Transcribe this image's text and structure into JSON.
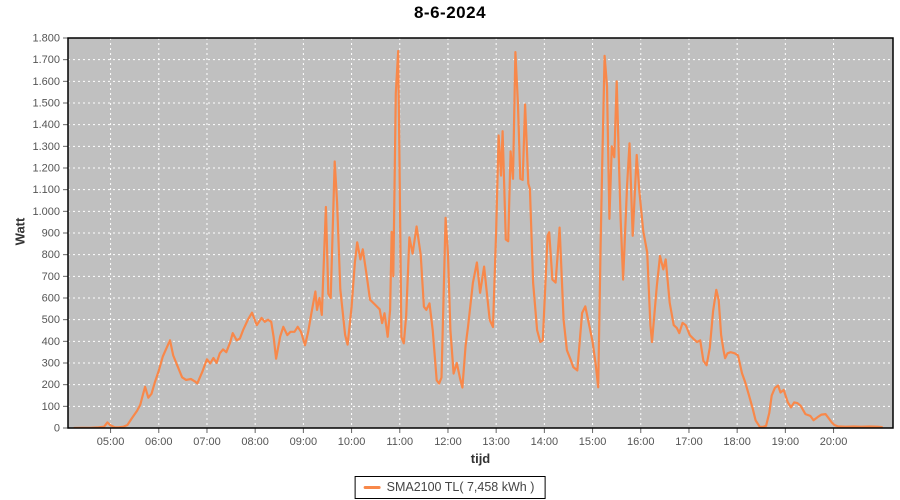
{
  "chart": {
    "plot_bg": "#c0c0c0",
    "grid_color": "#ffffff",
    "border_color": "#000000",
    "tick_color": "#666666",
    "tick_label_color": "#555555",
    "series_color": "#f8884a"
  },
  "legend": {
    "label": "SMA2100 TL( 7,458 kWh )",
    "swatch_color": "#f8884a"
  },
  "chart_data": {
    "type": "line",
    "title": "8-6-2024",
    "xlabel": "tijd",
    "ylabel": "Watt",
    "legend_position": "bottom-center",
    "grid": "dashed-white",
    "ylim": [
      0,
      1800
    ],
    "y_tick_step": 100,
    "y_tick_labels": [
      "0",
      "100",
      "200",
      "300",
      "400",
      "500",
      "600",
      "700",
      "800",
      "900",
      "1.000",
      "1.100",
      "1.200",
      "1.300",
      "1.400",
      "1.500",
      "1.600",
      "1.700",
      "1.800"
    ],
    "x_ticks": [
      "05:00",
      "06:00",
      "07:00",
      "08:00",
      "09:00",
      "10:00",
      "11:00",
      "12:00",
      "13:00",
      "14:00",
      "15:00",
      "16:00",
      "17:00",
      "18:00",
      "19:00",
      "20:00"
    ],
    "x_range_minutes": [
      247,
      1274
    ],
    "series": [
      {
        "name": "SMA2100 TL( 7,458 kWh )",
        "color": "#f8884a",
        "points": [
          [
            "04:15",
            0
          ],
          [
            "04:25",
            1
          ],
          [
            "04:35",
            1
          ],
          [
            "04:45",
            3
          ],
          [
            "04:52",
            6
          ],
          [
            "04:56",
            26
          ],
          [
            "05:00",
            12
          ],
          [
            "05:05",
            3
          ],
          [
            "05:10",
            3
          ],
          [
            "05:16",
            6
          ],
          [
            "05:21",
            14
          ],
          [
            "05:27",
            48
          ],
          [
            "05:33",
            80
          ],
          [
            "05:37",
            108
          ],
          [
            "05:40",
            150
          ],
          [
            "05:43",
            190
          ],
          [
            "05:47",
            140
          ],
          [
            "05:51",
            158
          ],
          [
            "05:55",
            210
          ],
          [
            "06:00",
            265
          ],
          [
            "06:05",
            330
          ],
          [
            "06:10",
            372
          ],
          [
            "06:14",
            405
          ],
          [
            "06:18",
            335
          ],
          [
            "06:22",
            298
          ],
          [
            "06:29",
            234
          ],
          [
            "06:34",
            222
          ],
          [
            "06:40",
            226
          ],
          [
            "06:45",
            215
          ],
          [
            "06:48",
            206
          ],
          [
            "06:54",
            258
          ],
          [
            "06:58",
            298
          ],
          [
            "07:00",
            317
          ],
          [
            "07:04",
            298
          ],
          [
            "07:08",
            323
          ],
          [
            "07:12",
            300
          ],
          [
            "07:16",
            345
          ],
          [
            "07:20",
            363
          ],
          [
            "07:24",
            350
          ],
          [
            "07:29",
            397
          ],
          [
            "07:32",
            438
          ],
          [
            "07:37",
            405
          ],
          [
            "07:41",
            413
          ],
          [
            "07:45",
            452
          ],
          [
            "07:51",
            500
          ],
          [
            "07:56",
            532
          ],
          [
            "08:02",
            475
          ],
          [
            "08:08",
            508
          ],
          [
            "08:12",
            490
          ],
          [
            "08:16",
            500
          ],
          [
            "08:20",
            490
          ],
          [
            "08:23",
            421
          ],
          [
            "08:26",
            320
          ],
          [
            "08:31",
            421
          ],
          [
            "08:35",
            467
          ],
          [
            "08:40",
            429
          ],
          [
            "08:44",
            444
          ],
          [
            "08:49",
            444
          ],
          [
            "08:53",
            467
          ],
          [
            "08:57",
            444
          ],
          [
            "09:02",
            382
          ],
          [
            "09:06",
            444
          ],
          [
            "09:10",
            530
          ],
          [
            "09:15",
            630
          ],
          [
            "09:17",
            545
          ],
          [
            "09:20",
            600
          ],
          [
            "09:23",
            522
          ],
          [
            "09:28",
            1020
          ],
          [
            "09:31",
            620
          ],
          [
            "09:34",
            600
          ],
          [
            "09:39",
            1230
          ],
          [
            "09:42",
            1040
          ],
          [
            "09:46",
            640
          ],
          [
            "09:52",
            430
          ],
          [
            "09:55",
            385
          ],
          [
            "10:00",
            560
          ],
          [
            "10:04",
            760
          ],
          [
            "10:07",
            857
          ],
          [
            "10:11",
            778
          ],
          [
            "10:14",
            825
          ],
          [
            "10:19",
            700
          ],
          [
            "10:23",
            592
          ],
          [
            "10:29",
            570
          ],
          [
            "10:35",
            548
          ],
          [
            "10:38",
            484
          ],
          [
            "10:41",
            530
          ],
          [
            "10:45",
            421
          ],
          [
            "10:48",
            545
          ],
          [
            "10:50",
            905
          ],
          [
            "10:52",
            700
          ],
          [
            "10:55",
            1545
          ],
          [
            "10:58",
            1740
          ],
          [
            "11:00",
            1100
          ],
          [
            "11:02",
            420
          ],
          [
            "11:05",
            391
          ],
          [
            "11:08",
            520
          ],
          [
            "11:12",
            880
          ],
          [
            "11:16",
            805
          ],
          [
            "11:21",
            930
          ],
          [
            "11:26",
            800
          ],
          [
            "11:30",
            560
          ],
          [
            "11:33",
            545
          ],
          [
            "11:37",
            575
          ],
          [
            "11:41",
            452
          ],
          [
            "11:46",
            220
          ],
          [
            "11:49",
            205
          ],
          [
            "11:52",
            233
          ],
          [
            "11:57",
            970
          ],
          [
            "12:00",
            800
          ],
          [
            "12:03",
            452
          ],
          [
            "12:07",
            251
          ],
          [
            "12:11",
            300
          ],
          [
            "12:15",
            230
          ],
          [
            "12:18",
            187
          ],
          [
            "12:22",
            380
          ],
          [
            "12:25",
            466
          ],
          [
            "12:31",
            670
          ],
          [
            "12:36",
            764
          ],
          [
            "12:40",
            624
          ],
          [
            "12:45",
            745
          ],
          [
            "12:52",
            499
          ],
          [
            "12:56",
            466
          ],
          [
            "13:00",
            918
          ],
          [
            "13:03",
            1350
          ],
          [
            "13:06",
            1165
          ],
          [
            "13:08",
            1370
          ],
          [
            "13:12",
            870
          ],
          [
            "13:15",
            862
          ],
          [
            "13:18",
            1277
          ],
          [
            "13:21",
            1150
          ],
          [
            "13:24",
            1735
          ],
          [
            "13:27",
            1500
          ],
          [
            "13:30",
            1150
          ],
          [
            "13:33",
            1145
          ],
          [
            "13:36",
            1493
          ],
          [
            "13:40",
            1128
          ],
          [
            "13:42",
            1104
          ],
          [
            "13:46",
            671
          ],
          [
            "13:51",
            452
          ],
          [
            "13:55",
            397
          ],
          [
            "13:58",
            405
          ],
          [
            "14:04",
            887
          ],
          [
            "14:06",
            903
          ],
          [
            "14:10",
            685
          ],
          [
            "14:14",
            671
          ],
          [
            "14:19",
            925
          ],
          [
            "14:24",
            499
          ],
          [
            "14:28",
            359
          ],
          [
            "14:33",
            312
          ],
          [
            "14:36",
            281
          ],
          [
            "14:41",
            266
          ],
          [
            "14:47",
            531
          ],
          [
            "14:51",
            561
          ],
          [
            "14:57",
            452
          ],
          [
            "15:00",
            397
          ],
          [
            "15:04",
            290
          ],
          [
            "15:07",
            188
          ],
          [
            "15:10",
            840
          ],
          [
            "15:12",
            1213
          ],
          [
            "15:15",
            1718
          ],
          [
            "15:18",
            1578
          ],
          [
            "15:21",
            965
          ],
          [
            "15:24",
            1300
          ],
          [
            "15:27",
            1250
          ],
          [
            "15:30",
            1600
          ],
          [
            "15:33",
            1200
          ],
          [
            "15:35",
            957
          ],
          [
            "15:38",
            685
          ],
          [
            "15:43",
            1120
          ],
          [
            "15:46",
            1314
          ],
          [
            "15:50",
            887
          ],
          [
            "15:55",
            1260
          ],
          [
            "15:58",
            1100
          ],
          [
            "16:03",
            910
          ],
          [
            "16:08",
            810
          ],
          [
            "16:12",
            475
          ],
          [
            "16:14",
            397
          ],
          [
            "16:20",
            654
          ],
          [
            "16:24",
            794
          ],
          [
            "16:28",
            732
          ],
          [
            "16:31",
            778
          ],
          [
            "16:36",
            578
          ],
          [
            "16:41",
            475
          ],
          [
            "16:45",
            461
          ],
          [
            "16:48",
            438
          ],
          [
            "16:52",
            485
          ],
          [
            "16:56",
            475
          ],
          [
            "17:01",
            429
          ],
          [
            "17:06",
            410
          ],
          [
            "17:10",
            397
          ],
          [
            "17:14",
            405
          ],
          [
            "17:18",
            310
          ],
          [
            "17:22",
            290
          ],
          [
            "17:26",
            370
          ],
          [
            "17:30",
            540
          ],
          [
            "17:34",
            638
          ],
          [
            "17:37",
            590
          ],
          [
            "17:40",
            430
          ],
          [
            "17:43",
            359
          ],
          [
            "17:45",
            322
          ],
          [
            "17:48",
            345
          ],
          [
            "17:52",
            350
          ],
          [
            "17:57",
            345
          ],
          [
            "18:01",
            335
          ],
          [
            "18:06",
            253
          ],
          [
            "18:10",
            211
          ],
          [
            "18:14",
            160
          ],
          [
            "18:19",
            95
          ],
          [
            "18:23",
            35
          ],
          [
            "18:28",
            6
          ],
          [
            "18:32",
            5
          ],
          [
            "18:36",
            10
          ],
          [
            "18:40",
            70
          ],
          [
            "18:43",
            150
          ],
          [
            "18:47",
            185
          ],
          [
            "18:51",
            196
          ],
          [
            "18:54",
            164
          ],
          [
            "18:58",
            176
          ],
          [
            "19:03",
            118
          ],
          [
            "19:07",
            95
          ],
          [
            "19:11",
            118
          ],
          [
            "19:15",
            115
          ],
          [
            "19:19",
            103
          ],
          [
            "19:25",
            64
          ],
          [
            "19:31",
            56
          ],
          [
            "19:35",
            36
          ],
          [
            "19:40",
            50
          ],
          [
            "19:45",
            62
          ],
          [
            "19:50",
            64
          ],
          [
            "19:55",
            40
          ],
          [
            "19:58",
            25
          ],
          [
            "20:01",
            14
          ],
          [
            "20:05",
            8
          ],
          [
            "20:15",
            6
          ],
          [
            "20:25",
            7
          ],
          [
            "20:35",
            6
          ],
          [
            "20:45",
            7
          ],
          [
            "20:55",
            6
          ],
          [
            "21:00",
            4
          ]
        ]
      }
    ]
  }
}
